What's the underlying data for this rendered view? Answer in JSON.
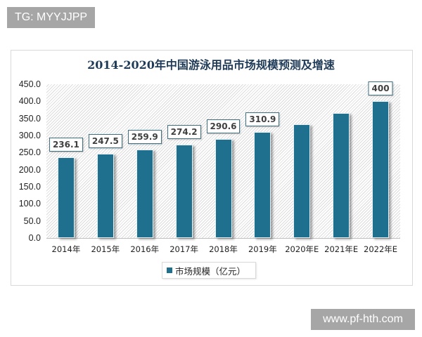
{
  "watermarks": {
    "top_left": "TG: MYYJJPP",
    "bottom_right": "www.pf-hth.com"
  },
  "colors": {
    "bar": "#1f6f8f",
    "title": "#1f3b57",
    "watermark_bg": "#a6a6a6"
  },
  "chart_data": {
    "type": "bar",
    "title": "2014-2020年中国游泳用品市场规模预测及增速",
    "xlabel": "",
    "ylabel": "",
    "ylim": [
      0,
      450
    ],
    "yticks": [
      "0.0",
      "50.0",
      "100.0",
      "150.0",
      "200.0",
      "250.0",
      "300.0",
      "350.0",
      "400.0",
      "450.0"
    ],
    "categories": [
      "2014年",
      "2015年",
      "2016年",
      "2017年",
      "2018年",
      "2019年",
      "2020年E",
      "2021年E",
      "2022年E"
    ],
    "series": [
      {
        "name": "市场规模（亿元）",
        "values": [
          236.1,
          247.5,
          259.9,
          274.2,
          290.6,
          310.9,
          332,
          365,
          400
        ],
        "labels": [
          "236.1",
          "247.5",
          "259.9",
          "274.2",
          "290.6",
          "310.9",
          "",
          "",
          "400"
        ]
      }
    ],
    "legend_position": "bottom",
    "grid": false,
    "background": "diagonal hatch"
  }
}
